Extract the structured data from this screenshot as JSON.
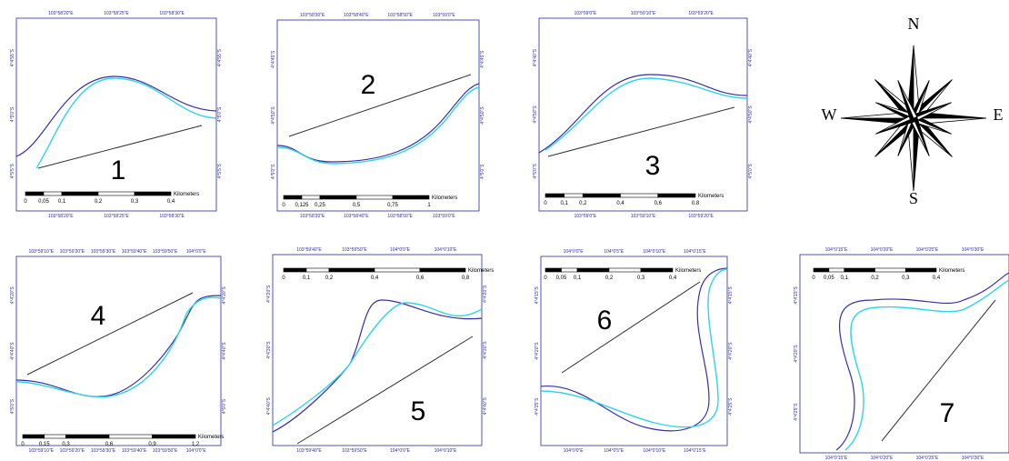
{
  "panels": [
    {
      "label": "1",
      "top_ticks": [
        "103°58'20\"E",
        "103°58'25\"E",
        "103°58'30\"E"
      ],
      "bottom_ticks": [
        "103°58'20\"E",
        "103°58'25\"E",
        "103°58'30\"E"
      ],
      "left_ticks": [
        "4°4'55\"S",
        "4°5'0\"S",
        "4°5'5\"S"
      ],
      "scale_ticks": [
        "0",
        "0,05",
        "0,1",
        "0,2",
        "0,3",
        "0,4"
      ],
      "scale_unit": "Kilometers"
    },
    {
      "label": "2",
      "top_ticks": [
        "103°58'30\"E",
        "103°58'40\"E",
        "103°58'50\"E",
        "103°59'0\"E"
      ],
      "bottom_ticks": [
        "103°58'30\"E",
        "103°58'40\"E",
        "103°58'50\"E",
        "103°59'0\"E"
      ],
      "left_ticks": [
        "4°4'45\"S",
        "4°4'50\"S",
        "4°5'0\"S"
      ],
      "scale_ticks": [
        "0",
        "0,125",
        "0,25",
        "0,5",
        "0,75",
        "1"
      ],
      "scale_unit": "Kilometers"
    },
    {
      "label": "3",
      "top_ticks": [
        "103°59'0\"E",
        "103°59'10\"E",
        "103°59'20\"E"
      ],
      "bottom_ticks": [
        "103°59'0\"E",
        "103°59'10\"E",
        "103°59'20\"E"
      ],
      "left_ticks": [
        "4°4'40\"S",
        "4°4'50\"S",
        "4°5'0\"S"
      ],
      "scale_ticks": [
        "0",
        "0,1",
        "0,2",
        "0,4",
        "0,6",
        "0,8"
      ],
      "scale_unit": "Kilometers"
    },
    {
      "label": "4",
      "top_ticks": [
        "103°59'10\"E",
        "103°59'20\"E",
        "103°59'30\"E",
        "103°59'40\"E",
        "103°59'50\"E",
        "104°0'0\"E"
      ],
      "bottom_ticks": [
        "103°59'10\"E",
        "103°59'20\"E",
        "103°59'30\"E",
        "103°59'40\"E",
        "103°59'50\"E",
        "104°0'0\"E"
      ],
      "left_ticks": [
        "4°4'20\"S",
        "4°4'40\"S",
        "4°5'0\"S"
      ],
      "scale_ticks": [
        "0",
        "0,15",
        "0,3",
        "0,6",
        "0,9",
        "1,2"
      ],
      "scale_unit": "Kilometers"
    },
    {
      "label": "5",
      "top_ticks": [
        "103°59'40\"E",
        "103°59'50\"E",
        "104°0'0\"E",
        "104°0'10\"E"
      ],
      "bottom_ticks": [
        "103°59'40\"E",
        "103°59'50\"E",
        "104°0'0\"E",
        "104°0'10\"E"
      ],
      "left_ticks": [
        "4°4'20\"S",
        "4°4'30\"S",
        "4°4'40\"S"
      ],
      "scale_ticks": [
        "0",
        "0,1",
        "0,2",
        "0,4",
        "0,6",
        "0,8"
      ],
      "scale_unit": "Kilometers"
    },
    {
      "label": "6",
      "top_ticks": [
        "104°0'0\"E",
        "104°0'5\"E",
        "104°0'10\"E",
        "104°0'15\"E"
      ],
      "bottom_ticks": [
        "104°0'0\"E",
        "104°0'5\"E",
        "104°0'10\"E",
        "104°0'15\"E"
      ],
      "left_ticks": [
        "4°4'15\"S",
        "4°4'20\"S",
        "4°4'25\"S"
      ],
      "scale_ticks": [
        "0",
        "0,05",
        "0,1",
        "0,2",
        "0,3",
        "0,4"
      ],
      "scale_unit": "Kilometers"
    },
    {
      "label": "7",
      "top_ticks": [
        "104°0'15\"E",
        "104°0'20\"E",
        "104°0'25\"E",
        "104°0'30\"E"
      ],
      "bottom_ticks": [
        "104°0'15\"E",
        "104°0'20\"E",
        "104°0'25\"E",
        "104°0'30\"E"
      ],
      "left_ticks": [
        "4°4'15\"S",
        "4°4'20\"S",
        "4°4'25\"S"
      ],
      "scale_ticks": [
        "0",
        "0,05",
        "0,1",
        "0,2",
        "0,3",
        "0,4"
      ],
      "scale_unit": "Kilometers"
    }
  ],
  "compass": {
    "north": "N",
    "south": "S",
    "east": "E",
    "west": "W"
  }
}
